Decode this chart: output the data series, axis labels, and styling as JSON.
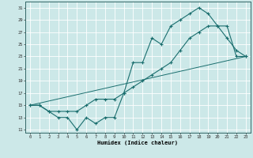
{
  "xlabel": "Humidex (Indice chaleur)",
  "bg_color": "#cce8e8",
  "grid_color": "#b0d0d0",
  "line_color": "#1a6e6e",
  "xlim": [
    -0.5,
    23.5
  ],
  "ylim": [
    10.5,
    32
  ],
  "yticks": [
    11,
    13,
    15,
    17,
    19,
    21,
    23,
    25,
    27,
    29,
    31
  ],
  "xticks": [
    0,
    1,
    2,
    3,
    4,
    5,
    6,
    7,
    8,
    9,
    10,
    11,
    12,
    13,
    14,
    15,
    16,
    17,
    18,
    19,
    20,
    21,
    22,
    23
  ],
  "line1_x": [
    0,
    1,
    2,
    3,
    4,
    5,
    6,
    7,
    8,
    9,
    10,
    11,
    12,
    13,
    14,
    15,
    16,
    17,
    18,
    19,
    20,
    21,
    22,
    23
  ],
  "line1_y": [
    15,
    15,
    14,
    13,
    13,
    11,
    13,
    12,
    13,
    13,
    17,
    22,
    22,
    26,
    25,
    28,
    29,
    30,
    31,
    30,
    28,
    26,
    24,
    23
  ],
  "line2_x": [
    0,
    1,
    2,
    3,
    4,
    5,
    6,
    7,
    8,
    9,
    10,
    11,
    12,
    13,
    14,
    15,
    16,
    17,
    18,
    19,
    20,
    21,
    22,
    23
  ],
  "line2_y": [
    15,
    15,
    14,
    14,
    14,
    14,
    15,
    16,
    16,
    16,
    17,
    18,
    19,
    20,
    21,
    22,
    24,
    26,
    27,
    28,
    28,
    28,
    23,
    23
  ],
  "line3_x": [
    0,
    23
  ],
  "line3_y": [
    15,
    23
  ]
}
